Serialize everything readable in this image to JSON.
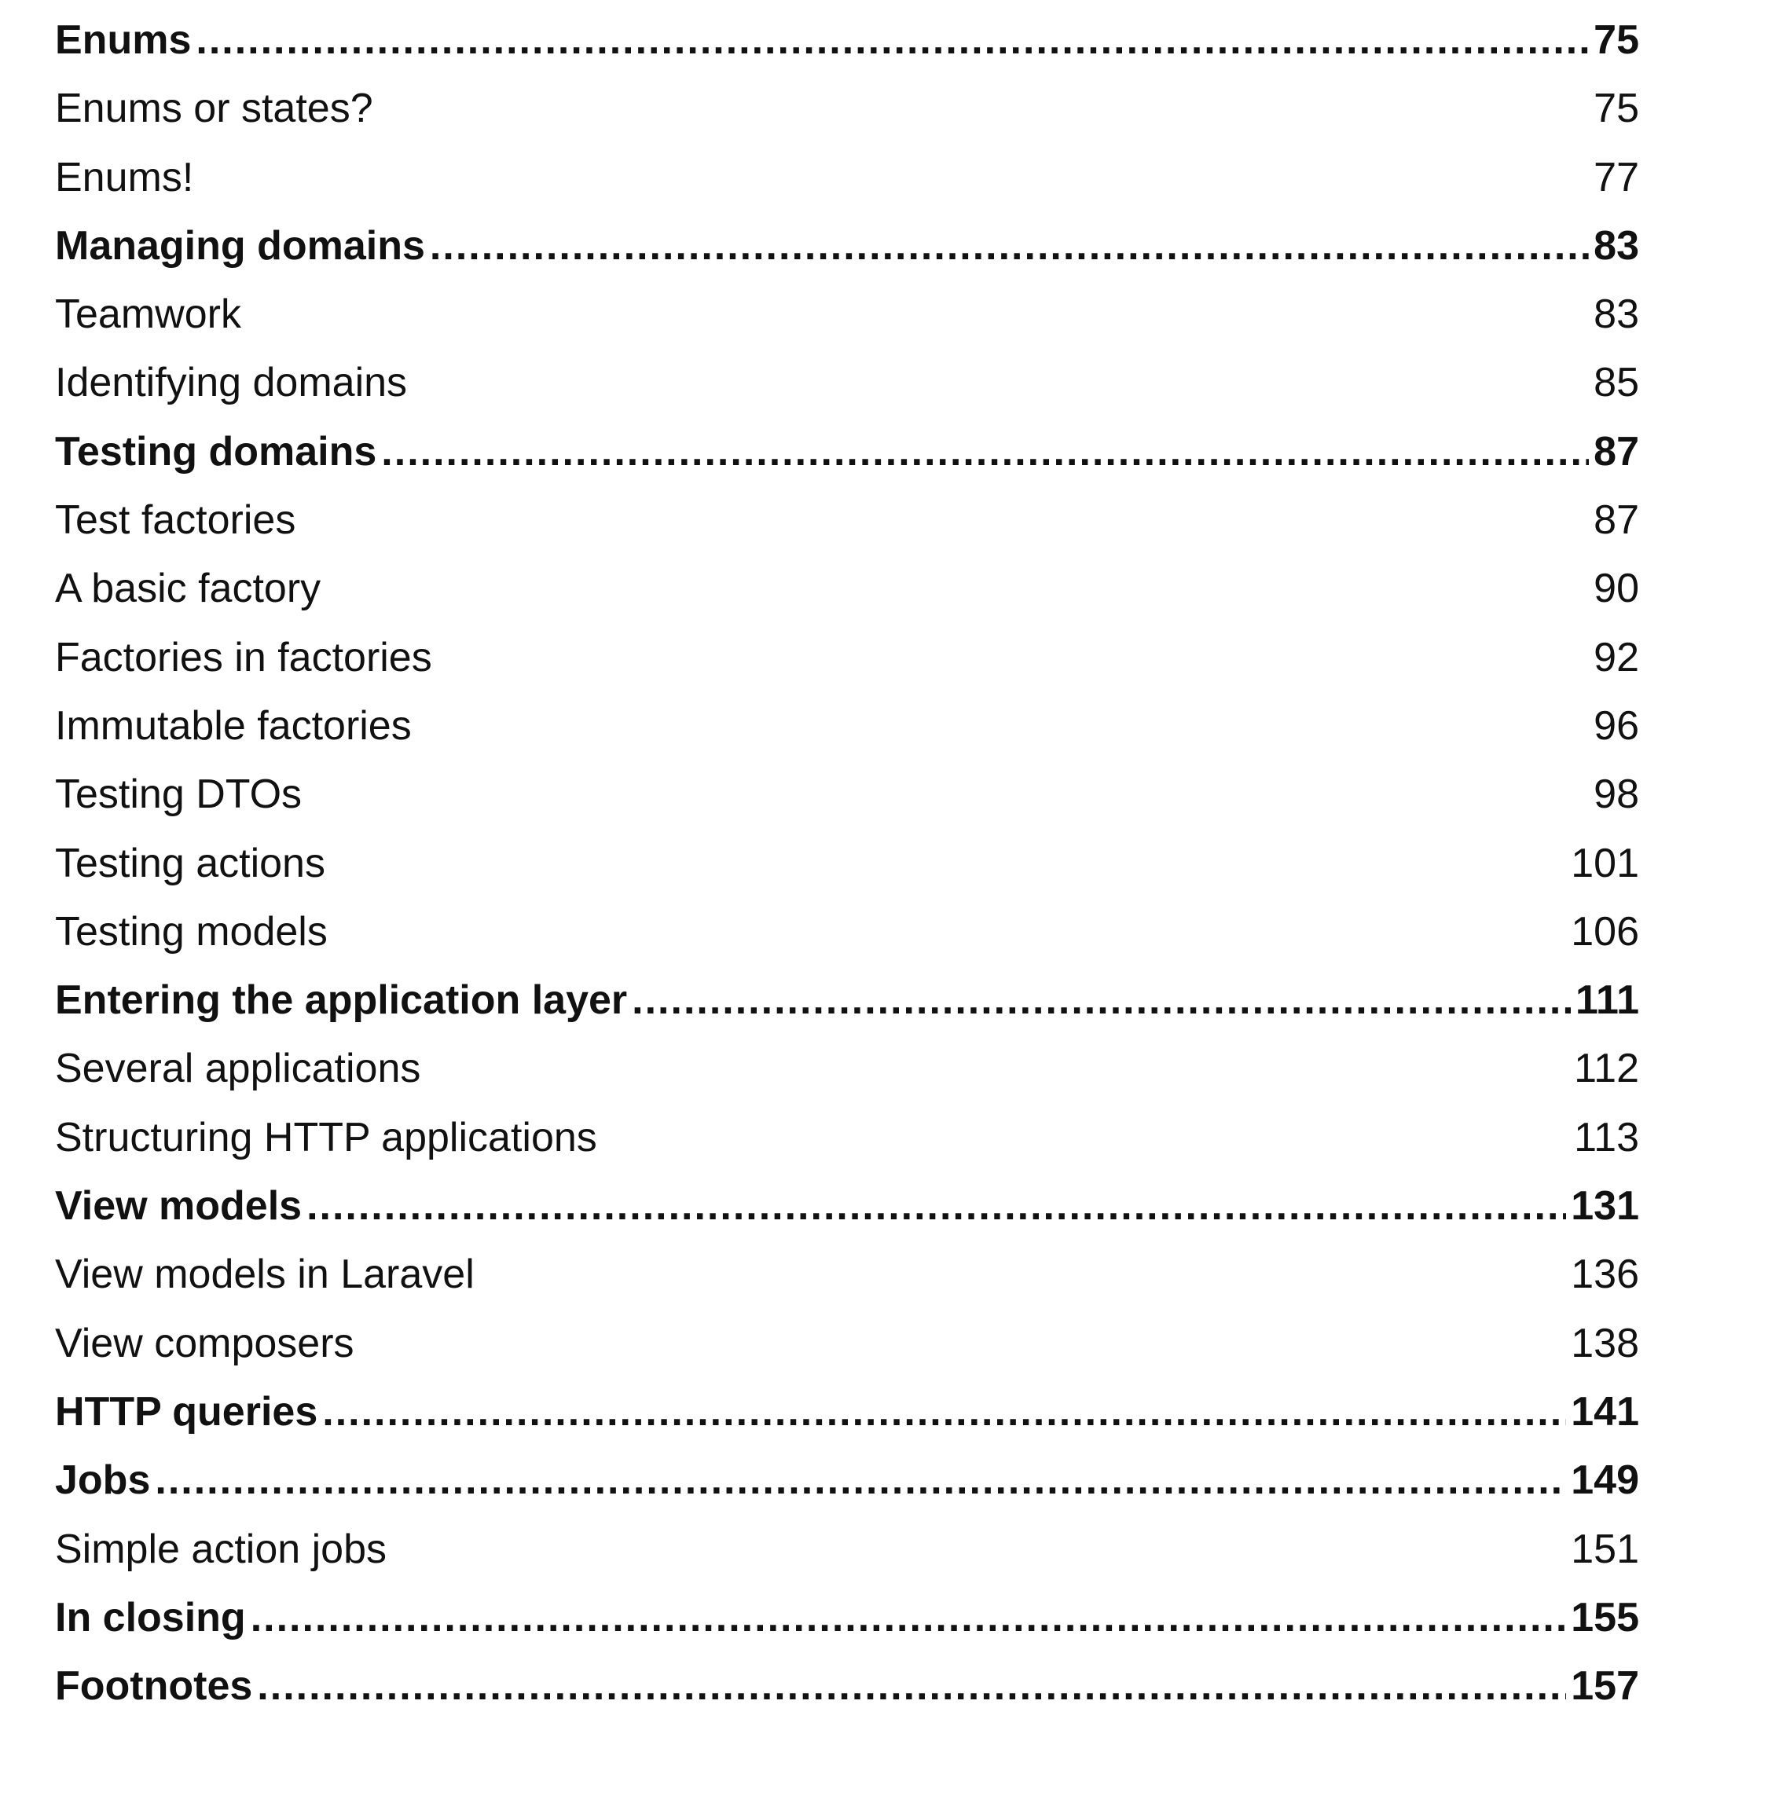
{
  "toc": [
    {
      "title": "Enums",
      "page": "75",
      "chapter": true
    },
    {
      "title": "Enums or states?",
      "page": "75",
      "chapter": false
    },
    {
      "title": "Enums!",
      "page": "77",
      "chapter": false
    },
    {
      "title": "Managing domains",
      "page": "83",
      "chapter": true
    },
    {
      "title": "Teamwork",
      "page": "83",
      "chapter": false
    },
    {
      "title": "Identifying domains",
      "page": "85",
      "chapter": false
    },
    {
      "title": "Testing domains",
      "page": "87",
      "chapter": true
    },
    {
      "title": "Test factories",
      "page": "87",
      "chapter": false
    },
    {
      "title": "A basic factory",
      "page": "90",
      "chapter": false
    },
    {
      "title": "Factories in factories",
      "page": "92",
      "chapter": false
    },
    {
      "title": "Immutable factories",
      "page": "96",
      "chapter": false
    },
    {
      "title": "Testing DTOs",
      "page": "98",
      "chapter": false
    },
    {
      "title": "Testing actions",
      "page": "101",
      "chapter": false
    },
    {
      "title": "Testing models",
      "page": "106",
      "chapter": false
    },
    {
      "title": "Entering the application layer",
      "page": "111",
      "chapter": true
    },
    {
      "title": "Several applications",
      "page": "112",
      "chapter": false
    },
    {
      "title": "Structuring HTTP applications",
      "page": "113",
      "chapter": false
    },
    {
      "title": "View models",
      "page": "131",
      "chapter": true
    },
    {
      "title": "View models in Laravel",
      "page": "136",
      "chapter": false
    },
    {
      "title": "View composers",
      "page": "138",
      "chapter": false
    },
    {
      "title": "HTTP queries",
      "page": "141",
      "chapter": true
    },
    {
      "title": "Jobs",
      "page": "149",
      "chapter": true
    },
    {
      "title": "Simple action jobs",
      "page": "151",
      "chapter": false
    },
    {
      "title": "In closing",
      "page": "155",
      "chapter": true
    },
    {
      "title": "Footnotes",
      "page": "157",
      "chapter": true
    }
  ]
}
